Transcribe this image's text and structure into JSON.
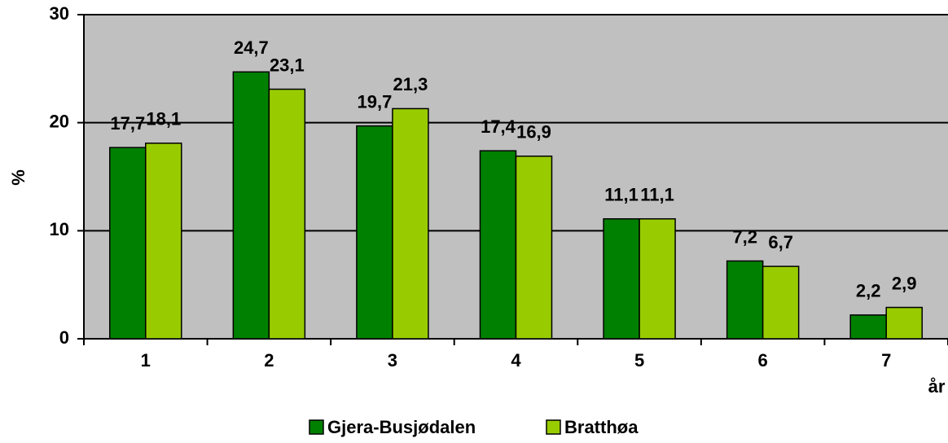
{
  "chart_data": {
    "type": "bar",
    "categories": [
      "1",
      "2",
      "3",
      "4",
      "5",
      "6",
      "7"
    ],
    "series": [
      {
        "name": "Gjera-Busjødalen",
        "color": "#008000",
        "values": [
          17.7,
          24.7,
          19.7,
          17.4,
          11.1,
          7.2,
          2.2
        ],
        "value_labels": [
          "17,7",
          "24,7",
          "19,7",
          "17,4",
          "11,1",
          "7,2",
          "2,2"
        ]
      },
      {
        "name": "Bratthøa",
        "color": "#99cc00",
        "values": [
          18.1,
          23.1,
          21.3,
          16.9,
          11.1,
          6.7,
          2.9
        ],
        "value_labels": [
          "18,1",
          "23,1",
          "21,3",
          "16,9",
          "11,1",
          "6,7",
          "2,9"
        ]
      }
    ],
    "ylabel": "%",
    "xlabel": "år",
    "ylim": [
      0,
      30
    ],
    "yticks": [
      0,
      10,
      20,
      30
    ],
    "grid": true,
    "legend": "bottom"
  }
}
